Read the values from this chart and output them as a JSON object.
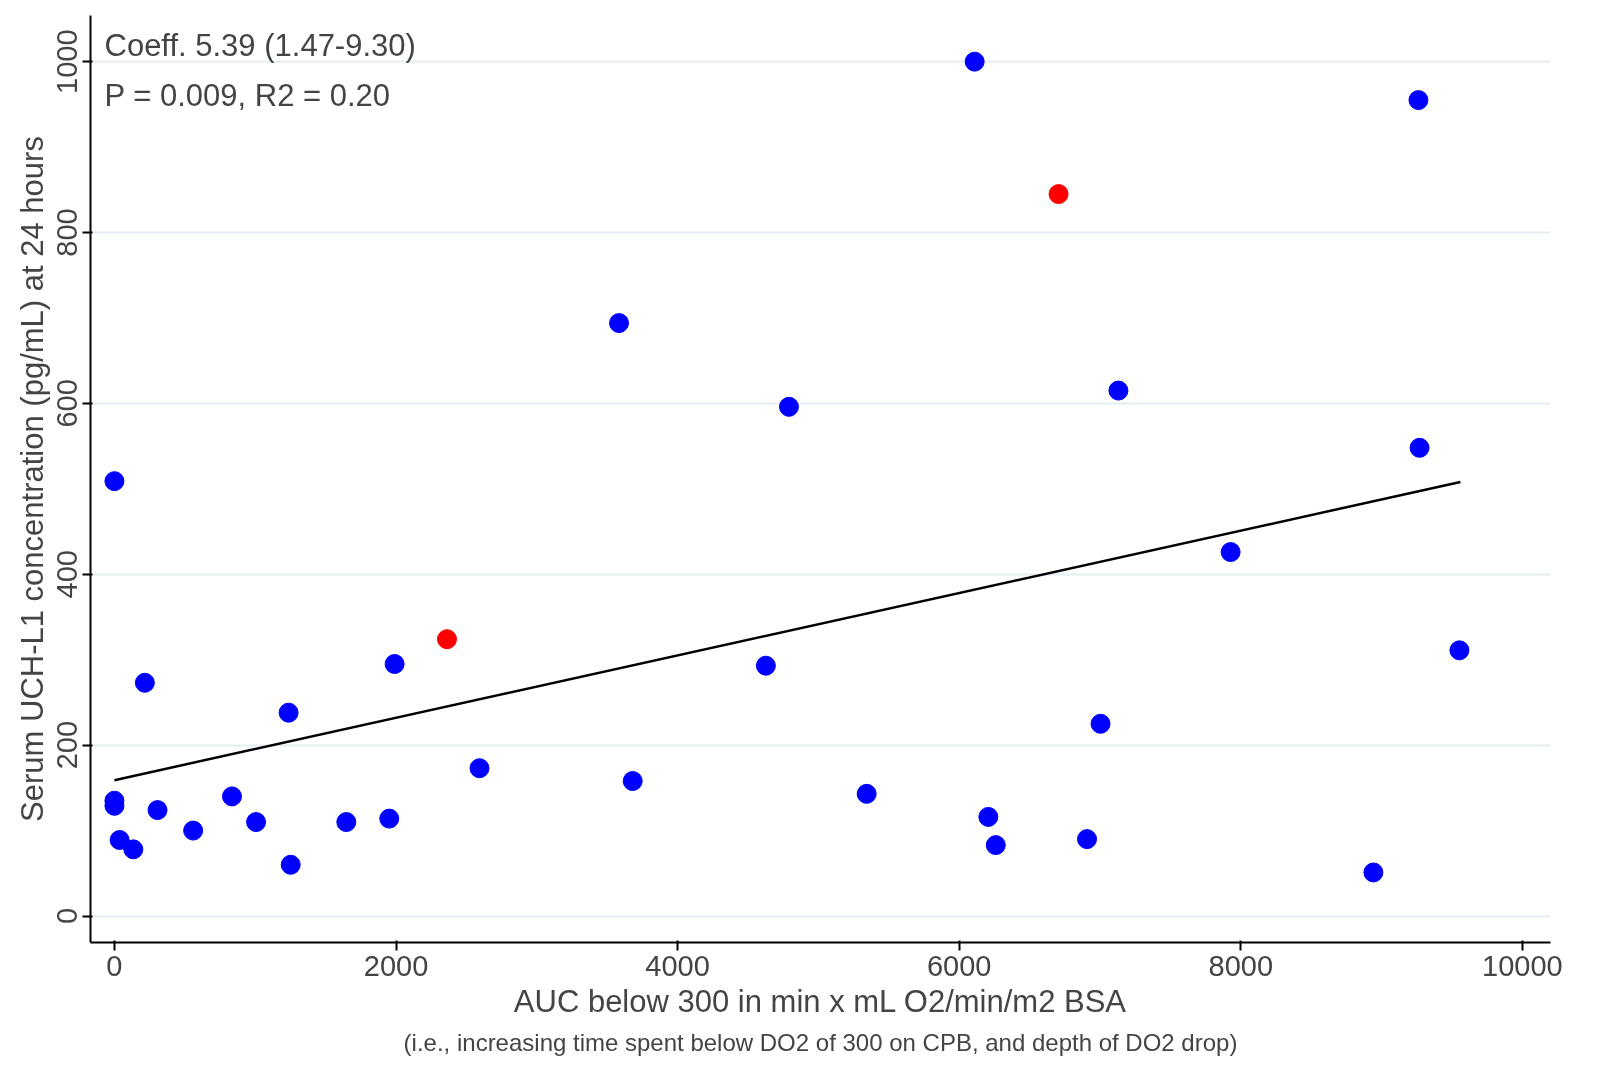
{
  "chart_data": {
    "type": "scatter",
    "xlabel": "AUC below 300 in min x mL O2/min/m2 BSA",
    "ylabel": "Serum UCH-L1 concentration (pg/mL) at 24 hours",
    "annotations": [
      "Coeff. 5.39 (1.47-9.30)",
      "P = 0.009, R2 = 0.20",
      "(i.e., increasing time spent below DO2 of 300 on CPB, and depth of DO2 drop)"
    ],
    "xlim": [
      -170,
      10200
    ],
    "ylim": [
      -31,
      1054
    ],
    "xticks": [
      0,
      2000,
      4000,
      6000,
      8000,
      10000
    ],
    "yticks": [
      0,
      200,
      400,
      600,
      800,
      1000
    ],
    "grid": "y",
    "marker": "circle",
    "series": [
      {
        "color": "#0000ff",
        "x": [
          0,
          0,
          0,
          37,
          134,
          216,
          306,
          559,
          835,
          1006,
          1237,
          1252,
          1647,
          1952,
          1990,
          2593,
          3584,
          3681,
          4627,
          4791,
          5343,
          6110,
          6207,
          6260,
          6908,
          7004,
          7131,
          7928,
          8942,
          9262,
          9270,
          9553
        ],
        "values": [
          509,
          135,
          129,
          89,
          78,
          273,
          124,
          100,
          140,
          110,
          238,
          60,
          110,
          114,
          295,
          173,
          694,
          158,
          293,
          596,
          143,
          1000,
          116,
          83,
          90,
          225,
          615,
          426,
          51,
          955,
          548,
          311
        ]
      },
      {
        "color": "#ff0000",
        "x": [
          2362,
          6706
        ],
        "values": [
          324,
          845
        ]
      },
      {
        "type": "line",
        "color": "#000000",
        "marker": "none",
        "x": [
          0,
          9560
        ],
        "values": [
          159,
          508
        ]
      }
    ]
  }
}
